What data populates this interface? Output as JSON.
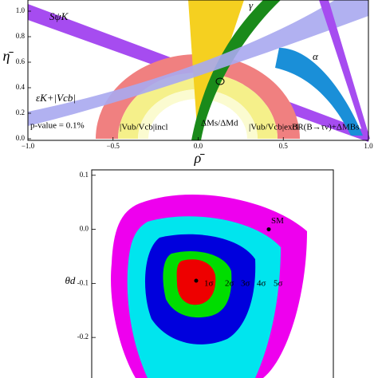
{
  "chart_data": [
    {
      "type": "region",
      "xlabel": "ρ̄",
      "ylabel": "η̄",
      "xlim": [
        -1,
        1
      ],
      "ylim": [
        0,
        1.05
      ],
      "xticks": [
        {
          "value": -1,
          "label": "−1.0"
        },
        {
          "value": -0.5,
          "label": "−0.5"
        },
        {
          "value": 0,
          "label": "0.0"
        },
        0.5,
        {
          "value": 1,
          "label": "1.0"
        }
      ],
      "yticks": [
        {
          "value": 0,
          "label": "0.0"
        },
        0.2,
        0.4,
        0.6,
        0.8,
        {
          "value": 1,
          "label": "1.0"
        }
      ],
      "annotations": [
        "γ",
        "α",
        "SψK",
        "εK+|Vcb|",
        "p-value = 0.1%",
        "|Vub/Vcb|incl",
        "ΔMs/ΔMd",
        "|Vub/Vcb|excl",
        "BR(B→τν)+ΔMBs"
      ]
    },
    {
      "type": "contour",
      "ylabel": "θd",
      "ylim": [
        -0.275,
        0.11
      ],
      "yticks": [
        0.1,
        {
          "value": 0,
          "label": "0.0"
        },
        -0.1,
        -0.2
      ],
      "contour_labels": [
        "1σ",
        "2σ",
        "3σ",
        "4σ",
        "5σ"
      ],
      "best_fit_y": -0.095,
      "sm_label": "SM",
      "sm_y": 0
    }
  ]
}
